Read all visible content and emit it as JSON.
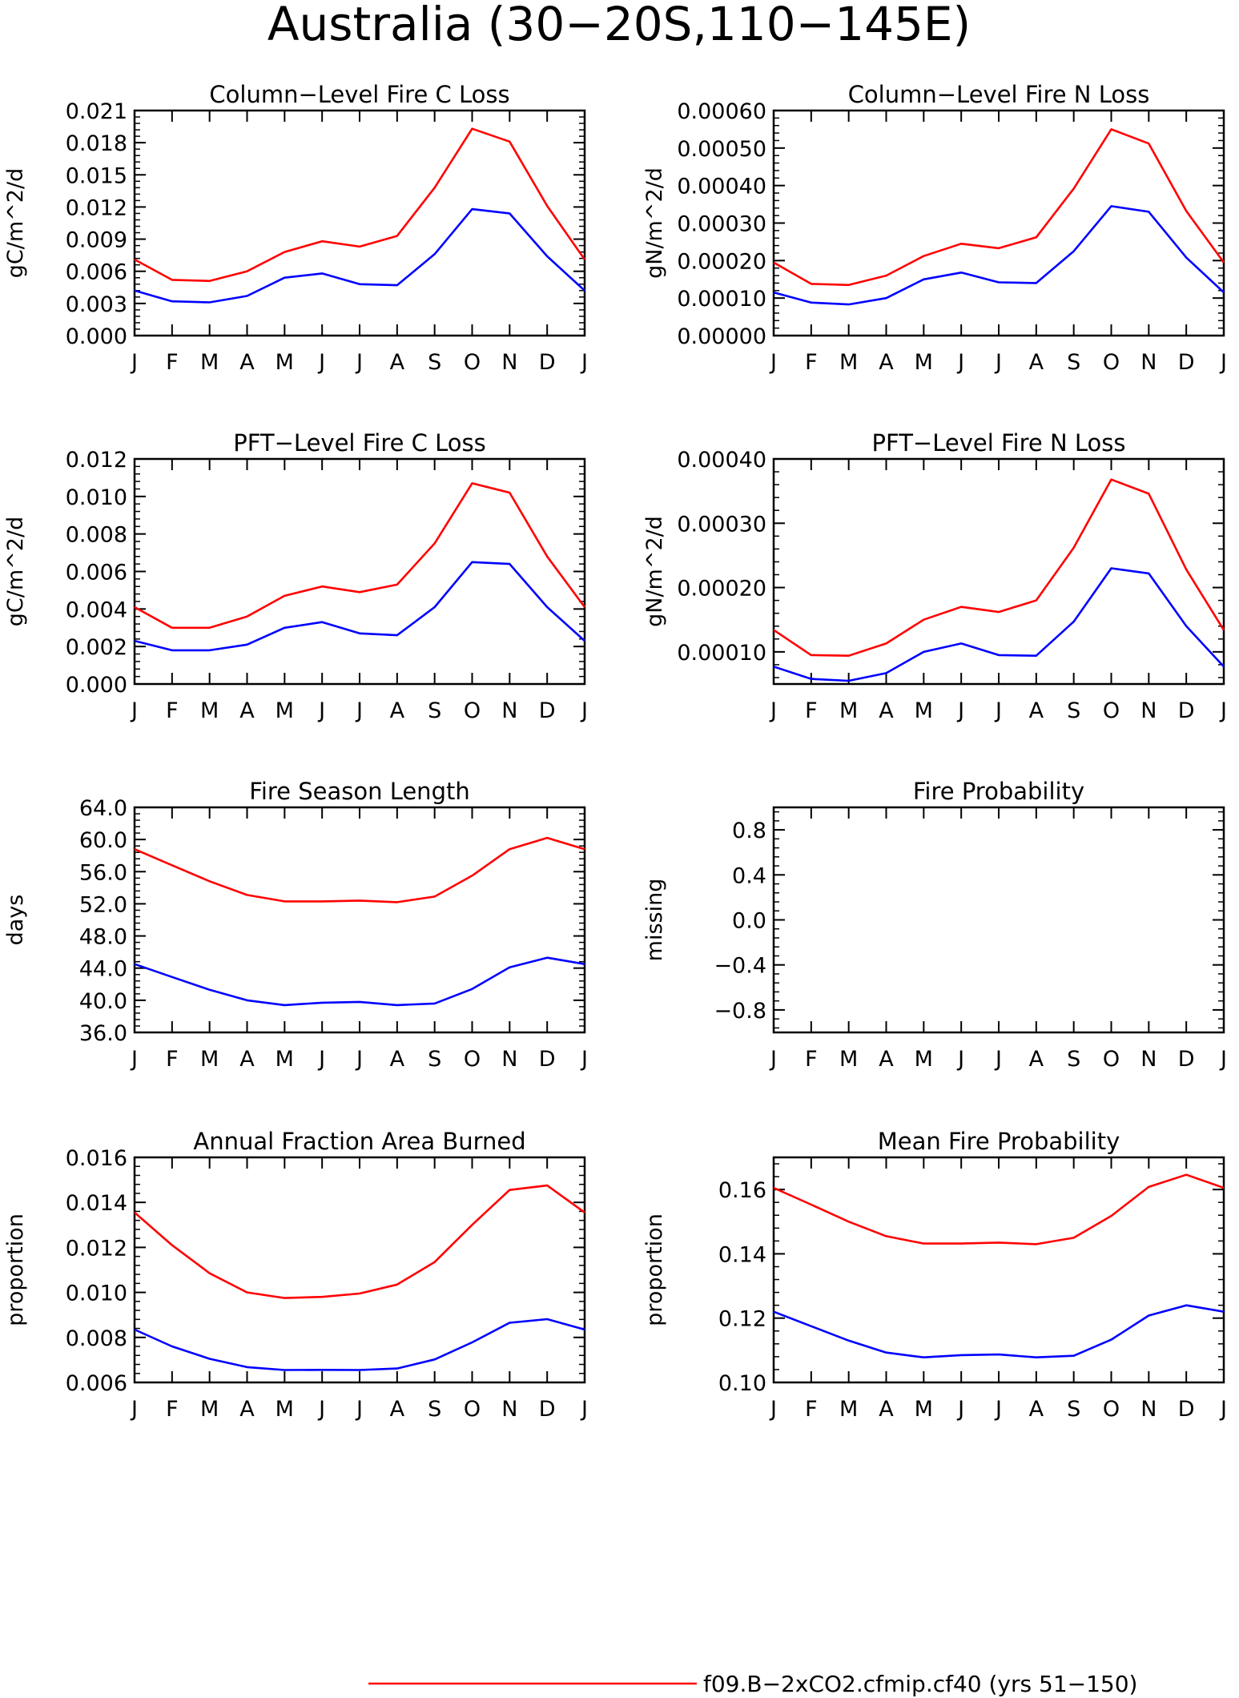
{
  "title": "Australia (30−20S,110−145E)",
  "legend": {
    "label": "f09.B−2xCO2.cfmip.cf40 (yrs 51−150)",
    "color": "#ff0000"
  },
  "colors": {
    "series_1": "#ff0000",
    "series_2": "#0000ff"
  },
  "chart_data": [
    {
      "type": "line",
      "title": "Column−Level Fire C Loss",
      "ylabel": "gC/m^2/d",
      "categories": [
        "J",
        "F",
        "M",
        "A",
        "M",
        "J",
        "J",
        "A",
        "S",
        "O",
        "N",
        "D",
        "J"
      ],
      "yticks": [
        "0.000",
        "0.003",
        "0.006",
        "0.009",
        "0.012",
        "0.015",
        "0.018",
        "0.021"
      ],
      "ylim": [
        0,
        0.021
      ],
      "series": [
        {
          "color": "#ff0000",
          "values": [
            0.0071,
            0.0052,
            0.0051,
            0.006,
            0.0078,
            0.0088,
            0.0083,
            0.0093,
            0.0138,
            0.0193,
            0.0181,
            0.0121,
            0.0071
          ]
        },
        {
          "color": "#0000ff",
          "values": [
            0.0042,
            0.0032,
            0.0031,
            0.0037,
            0.0054,
            0.0058,
            0.0048,
            0.0047,
            0.0076,
            0.0118,
            0.0114,
            0.0074,
            0.0042
          ]
        }
      ]
    },
    {
      "type": "line",
      "title": "Column−Level Fire N Loss",
      "ylabel": "gN/m^2/d",
      "categories": [
        "J",
        "F",
        "M",
        "A",
        "M",
        "J",
        "J",
        "A",
        "S",
        "O",
        "N",
        "D",
        "J"
      ],
      "yticks": [
        "0.00000",
        "0.00010",
        "0.00020",
        "0.00030",
        "0.00040",
        "0.00050",
        "0.00060"
      ],
      "ylim": [
        0,
        0.0006
      ],
      "series": [
        {
          "color": "#ff0000",
          "values": [
            0.000195,
            0.000138,
            0.000135,
            0.00016,
            0.000212,
            0.000245,
            0.000233,
            0.000262,
            0.000392,
            0.00055,
            0.000512,
            0.000332,
            0.000195
          ]
        },
        {
          "color": "#0000ff",
          "values": [
            0.000115,
            8.8e-05,
            8.3e-05,
            0.0001,
            0.00015,
            0.000168,
            0.000142,
            0.00014,
            0.000225,
            0.000345,
            0.00033,
            0.000208,
            0.000115
          ]
        }
      ]
    },
    {
      "type": "line",
      "title": "PFT−Level Fire C Loss",
      "ylabel": "gC/m^2/d",
      "categories": [
        "J",
        "F",
        "M",
        "A",
        "M",
        "J",
        "J",
        "A",
        "S",
        "O",
        "N",
        "D",
        "J"
      ],
      "yticks": [
        "0.000",
        "0.002",
        "0.004",
        "0.006",
        "0.008",
        "0.010",
        "0.012"
      ],
      "ylim": [
        0,
        0.012
      ],
      "series": [
        {
          "color": "#ff0000",
          "values": [
            0.0041,
            0.003,
            0.003,
            0.0036,
            0.0047,
            0.0052,
            0.0049,
            0.0053,
            0.0075,
            0.0107,
            0.0102,
            0.0068,
            0.0041
          ]
        },
        {
          "color": "#0000ff",
          "values": [
            0.0023,
            0.0018,
            0.0018,
            0.0021,
            0.003,
            0.0033,
            0.0027,
            0.0026,
            0.0041,
            0.0065,
            0.0064,
            0.0041,
            0.0023
          ]
        }
      ]
    },
    {
      "type": "line",
      "title": "PFT−Level Fire N Loss",
      "ylabel": "gN/m^2/d",
      "categories": [
        "J",
        "F",
        "M",
        "A",
        "M",
        "J",
        "J",
        "A",
        "S",
        "O",
        "N",
        "D",
        "J"
      ],
      "yticks": [
        "0.00010",
        "0.00020",
        "0.00030",
        "0.00040"
      ],
      "ylim": [
        5e-05,
        0.0004
      ],
      "series": [
        {
          "color": "#ff0000",
          "values": [
            0.000134,
            9.5e-05,
            9.4e-05,
            0.000113,
            0.00015,
            0.00017,
            0.000162,
            0.00018,
            0.000262,
            0.000368,
            0.000346,
            0.000228,
            0.000134
          ]
        },
        {
          "color": "#0000ff",
          "values": [
            7.7e-05,
            5.8e-05,
            5.5e-05,
            6.7e-05,
            0.0001,
            0.000113,
            9.5e-05,
            9.4e-05,
            0.000147,
            0.00023,
            0.000222,
            0.00014,
            7.7e-05
          ]
        }
      ]
    },
    {
      "type": "line",
      "title": "Fire Season Length",
      "ylabel": "days",
      "categories": [
        "J",
        "F",
        "M",
        "A",
        "M",
        "J",
        "J",
        "A",
        "S",
        "O",
        "N",
        "D",
        "J"
      ],
      "yticks": [
        "36.0",
        "40.0",
        "44.0",
        "48.0",
        "52.0",
        "56.0",
        "60.0",
        "64.0"
      ],
      "ylim": [
        36,
        64
      ],
      "series": [
        {
          "color": "#ff0000",
          "values": [
            58.8,
            56.8,
            54.8,
            53.1,
            52.3,
            52.3,
            52.4,
            52.2,
            52.9,
            55.5,
            58.8,
            60.2,
            58.8
          ]
        },
        {
          "color": "#0000ff",
          "values": [
            44.5,
            42.9,
            41.3,
            40.0,
            39.4,
            39.7,
            39.8,
            39.4,
            39.6,
            41.4,
            44.1,
            45.3,
            44.5
          ]
        }
      ]
    },
    {
      "type": "line",
      "title": "Fire Probability",
      "ylabel": "missing",
      "categories": [
        "J",
        "F",
        "M",
        "A",
        "M",
        "J",
        "J",
        "A",
        "S",
        "O",
        "N",
        "D",
        "J"
      ],
      "yticks": [
        "−0.8",
        "−0.4",
        "0.0",
        "0.4",
        "0.8"
      ],
      "ylim": [
        -1,
        1
      ],
      "series": []
    },
    {
      "type": "line",
      "title": "Annual Fraction Area Burned",
      "ylabel": "proportion",
      "categories": [
        "J",
        "F",
        "M",
        "A",
        "M",
        "J",
        "J",
        "A",
        "S",
        "O",
        "N",
        "D",
        "J"
      ],
      "yticks": [
        "0.006",
        "0.008",
        "0.010",
        "0.012",
        "0.014",
        "0.016"
      ],
      "ylim": [
        0.006,
        0.016
      ],
      "series": [
        {
          "color": "#ff0000",
          "values": [
            0.01355,
            0.0121,
            0.01085,
            0.01,
            0.00975,
            0.0098,
            0.00995,
            0.01035,
            0.01135,
            0.013,
            0.01455,
            0.01475,
            0.01355
          ]
        },
        {
          "color": "#0000ff",
          "values": [
            0.00835,
            0.0076,
            0.00705,
            0.00668,
            0.00655,
            0.00656,
            0.00655,
            0.00662,
            0.00702,
            0.00778,
            0.00865,
            0.00881,
            0.00835
          ]
        }
      ]
    },
    {
      "type": "line",
      "title": "Mean Fire Probability",
      "ylabel": "proportion",
      "categories": [
        "J",
        "F",
        "M",
        "A",
        "M",
        "J",
        "J",
        "A",
        "S",
        "O",
        "N",
        "D",
        "J"
      ],
      "yticks": [
        "0.10",
        "0.12",
        "0.14",
        "0.16"
      ],
      "ylim": [
        0.1,
        0.17
      ],
      "series": [
        {
          "color": "#ff0000",
          "values": [
            0.1605,
            0.1553,
            0.15,
            0.1455,
            0.1432,
            0.1432,
            0.1435,
            0.143,
            0.145,
            0.1518,
            0.1608,
            0.1646,
            0.1605
          ]
        },
        {
          "color": "#0000ff",
          "values": [
            0.122,
            0.1175,
            0.113,
            0.1093,
            0.1078,
            0.1085,
            0.1087,
            0.1078,
            0.1083,
            0.1133,
            0.1208,
            0.124,
            0.122
          ]
        }
      ]
    }
  ]
}
